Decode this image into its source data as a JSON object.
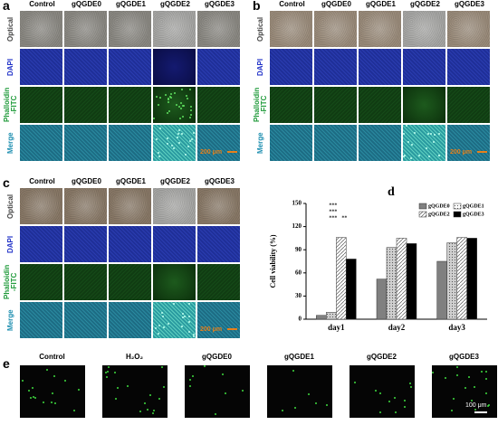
{
  "panels": [
    {
      "label": "a",
      "columns": [
        "Control",
        "gQGDE0",
        "gQGDE1",
        "gQGDE2",
        "gQGDE3"
      ],
      "rows": [
        "Optical",
        "DAPI",
        "Phalloidin -FITC",
        "Merge"
      ],
      "scale_bar": "200 μm"
    },
    {
      "label": "b",
      "columns": [
        "Control",
        "gQGDE0",
        "gQGDE1",
        "gQGDE2",
        "gQGDE3"
      ],
      "rows": [
        "Optical",
        "DAPI",
        "Phalloidin -FITC",
        "Merge"
      ],
      "scale_bar": "200 μm"
    },
    {
      "label": "c",
      "columns": [
        "Control",
        "gQGDE0",
        "gQGDE1",
        "gQGDE2",
        "gQGDE3"
      ],
      "rows": [
        "Optical",
        "DAPI",
        "Phalloidin -FITC",
        "Merge"
      ],
      "scale_bar": "200 μm"
    }
  ],
  "chart_data": {
    "type": "bar",
    "label": "d",
    "ylabel": "Cell viability (%)",
    "categories": [
      "day1",
      "day2",
      "day3"
    ],
    "series": [
      {
        "name": "gQGDE0",
        "color": "#808080",
        "pattern": "none",
        "values": [
          5,
          52,
          75
        ]
      },
      {
        "name": "gQGDE1",
        "color": "#d0d0d0",
        "pattern": "dots",
        "values": [
          9,
          93,
          99
        ]
      },
      {
        "name": "gQGDE2",
        "color": "#ffffff",
        "pattern": "diagonal",
        "values": [
          106,
          105,
          106
        ]
      },
      {
        "name": "gQGDE3",
        "color": "#000000",
        "pattern": "none",
        "values": [
          78,
          98,
          105
        ]
      }
    ],
    "annotations": [
      "***",
      "***",
      "***",
      "**"
    ],
    "ylim": [
      0,
      150
    ],
    "yticks": [
      0,
      30,
      60,
      90,
      120,
      150
    ],
    "legend": "upper right"
  },
  "panel_e": {
    "label": "e",
    "columns": [
      "Control",
      "H₂O₂",
      "gQGDE0",
      "gQGDE1",
      "gQGDE2",
      "gQGDE3"
    ],
    "scale_bar": "100 μm"
  }
}
